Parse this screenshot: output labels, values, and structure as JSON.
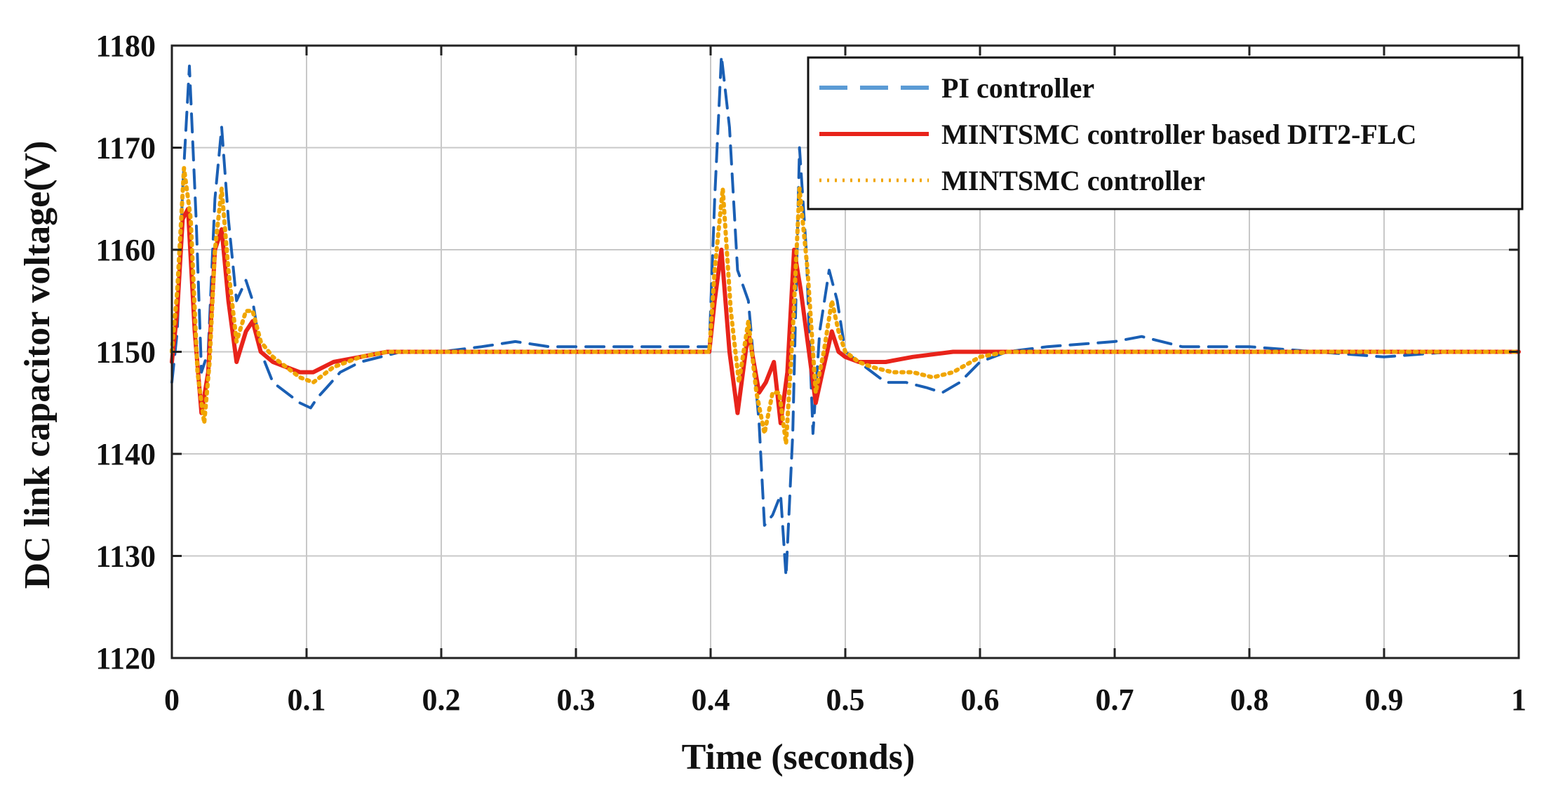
{
  "chart_data": {
    "type": "line",
    "title": "",
    "xlabel": "Time (seconds)",
    "ylabel": "DC link capacitor voltage(V)",
    "xlim": [
      0,
      1
    ],
    "ylim": [
      1120,
      1180
    ],
    "grid": true,
    "legend_position": "top-right",
    "x_ticks": [
      0,
      0.1,
      0.2,
      0.3,
      0.4,
      0.5,
      0.6,
      0.7,
      0.8,
      0.9,
      1
    ],
    "x_tick_labels": [
      "0",
      "0.1",
      "0.2",
      "0.3",
      "0.4",
      "0.5",
      "0.6",
      "0.7",
      "0.8",
      "0.9",
      "1"
    ],
    "y_ticks": [
      1120,
      1130,
      1140,
      1150,
      1160,
      1170,
      1180
    ],
    "y_tick_labels": [
      "1120",
      "1130",
      "1140",
      "1150",
      "1160",
      "1170",
      "1180"
    ],
    "series": [
      {
        "name": "PI controller",
        "color": "#1a5fb4",
        "legend_color": "#5b9bd5",
        "style": "dashed",
        "x": [
          0,
          0.004,
          0.008,
          0.013,
          0.018,
          0.022,
          0.027,
          0.032,
          0.037,
          0.042,
          0.048,
          0.055,
          0.06,
          0.066,
          0.075,
          0.085,
          0.095,
          0.103,
          0.108,
          0.115,
          0.125,
          0.14,
          0.155,
          0.17,
          0.2,
          0.23,
          0.255,
          0.28,
          0.32,
          0.36,
          0.399,
          0.403,
          0.408,
          0.414,
          0.42,
          0.428,
          0.436,
          0.44,
          0.446,
          0.452,
          0.456,
          0.461,
          0.466,
          0.471,
          0.476,
          0.481,
          0.488,
          0.494,
          0.5,
          0.51,
          0.52,
          0.53,
          0.545,
          0.56,
          0.572,
          0.585,
          0.6,
          0.62,
          0.65,
          0.7,
          0.72,
          0.75,
          0.8,
          0.85,
          0.9,
          0.95,
          1
        ],
        "values": [
          1147,
          1152,
          1166,
          1178,
          1163,
          1148,
          1150,
          1165,
          1172,
          1163,
          1155,
          1157,
          1155,
          1150,
          1147,
          1146,
          1145,
          1144.5,
          1145.5,
          1146.5,
          1148,
          1149,
          1149.5,
          1150,
          1150,
          1150.5,
          1151,
          1150.5,
          1150.5,
          1150.5,
          1150.5,
          1165,
          1179,
          1172,
          1158,
          1155,
          1143,
          1133,
          1134,
          1136,
          1128,
          1142,
          1170,
          1160,
          1142,
          1152,
          1158,
          1155,
          1150,
          1149,
          1148,
          1147,
          1147,
          1146.5,
          1146,
          1147,
          1149,
          1150,
          1150.5,
          1151,
          1151.5,
          1150.5,
          1150.5,
          1150,
          1149.5,
          1150,
          1150
        ]
      },
      {
        "name": "MINTSMC controller based DIT2-FLC",
        "color": "#e8231a",
        "legend_color": "#e8231a",
        "style": "solid",
        "x": [
          0,
          0.004,
          0.008,
          0.012,
          0.017,
          0.022,
          0.027,
          0.032,
          0.037,
          0.042,
          0.048,
          0.055,
          0.06,
          0.066,
          0.075,
          0.085,
          0.095,
          0.105,
          0.12,
          0.14,
          0.16,
          0.2,
          0.25,
          0.3,
          0.35,
          0.399,
          0.403,
          0.408,
          0.414,
          0.42,
          0.428,
          0.436,
          0.441,
          0.447,
          0.452,
          0.457,
          0.462,
          0.467,
          0.473,
          0.478,
          0.483,
          0.49,
          0.495,
          0.5,
          0.51,
          0.53,
          0.55,
          0.58,
          0.6,
          0.65,
          0.7,
          0.8,
          0.9,
          1
        ],
        "values": [
          1149,
          1154,
          1163,
          1164,
          1152,
          1144,
          1148,
          1160,
          1162,
          1155,
          1149,
          1152,
          1153,
          1150,
          1149,
          1148.5,
          1148,
          1148,
          1149,
          1149.5,
          1150,
          1150,
          1150,
          1150,
          1150,
          1150,
          1155,
          1160,
          1150,
          1144,
          1152,
          1146,
          1147,
          1149,
          1143,
          1148,
          1160,
          1156,
          1150,
          1145,
          1148,
          1152,
          1150,
          1149.5,
          1149,
          1149,
          1149.5,
          1150,
          1150,
          1150,
          1150,
          1150,
          1150,
          1150
        ]
      },
      {
        "name": "MINTSMC controller",
        "color": "#f0a500",
        "legend_color": "#f0a500",
        "style": "dotted",
        "x": [
          0,
          0.004,
          0.009,
          0.014,
          0.019,
          0.024,
          0.028,
          0.032,
          0.037,
          0.042,
          0.048,
          0.055,
          0.06,
          0.066,
          0.075,
          0.085,
          0.095,
          0.105,
          0.12,
          0.14,
          0.16,
          0.2,
          0.25,
          0.3,
          0.35,
          0.399,
          0.403,
          0.409,
          0.415,
          0.421,
          0.428,
          0.434,
          0.44,
          0.446,
          0.451,
          0.456,
          0.461,
          0.466,
          0.472,
          0.478,
          0.484,
          0.49,
          0.495,
          0.5,
          0.51,
          0.52,
          0.535,
          0.55,
          0.565,
          0.58,
          0.6,
          0.62,
          0.65,
          0.7,
          0.8,
          0.9,
          1
        ],
        "values": [
          1150,
          1156,
          1168,
          1163,
          1148,
          1143,
          1149,
          1160,
          1166,
          1158,
          1151,
          1154,
          1154,
          1151,
          1149.5,
          1148.5,
          1147.5,
          1147,
          1148.5,
          1149.5,
          1150,
          1150,
          1150,
          1150,
          1150,
          1150,
          1158,
          1166,
          1154,
          1147,
          1153,
          1146,
          1142,
          1146,
          1146,
          1141,
          1152,
          1166,
          1158,
          1146,
          1150,
          1155,
          1152,
          1150,
          1149,
          1148.5,
          1148,
          1148,
          1147.5,
          1148,
          1149.5,
          1150,
          1150,
          1150,
          1150,
          1150,
          1150
        ]
      }
    ]
  }
}
